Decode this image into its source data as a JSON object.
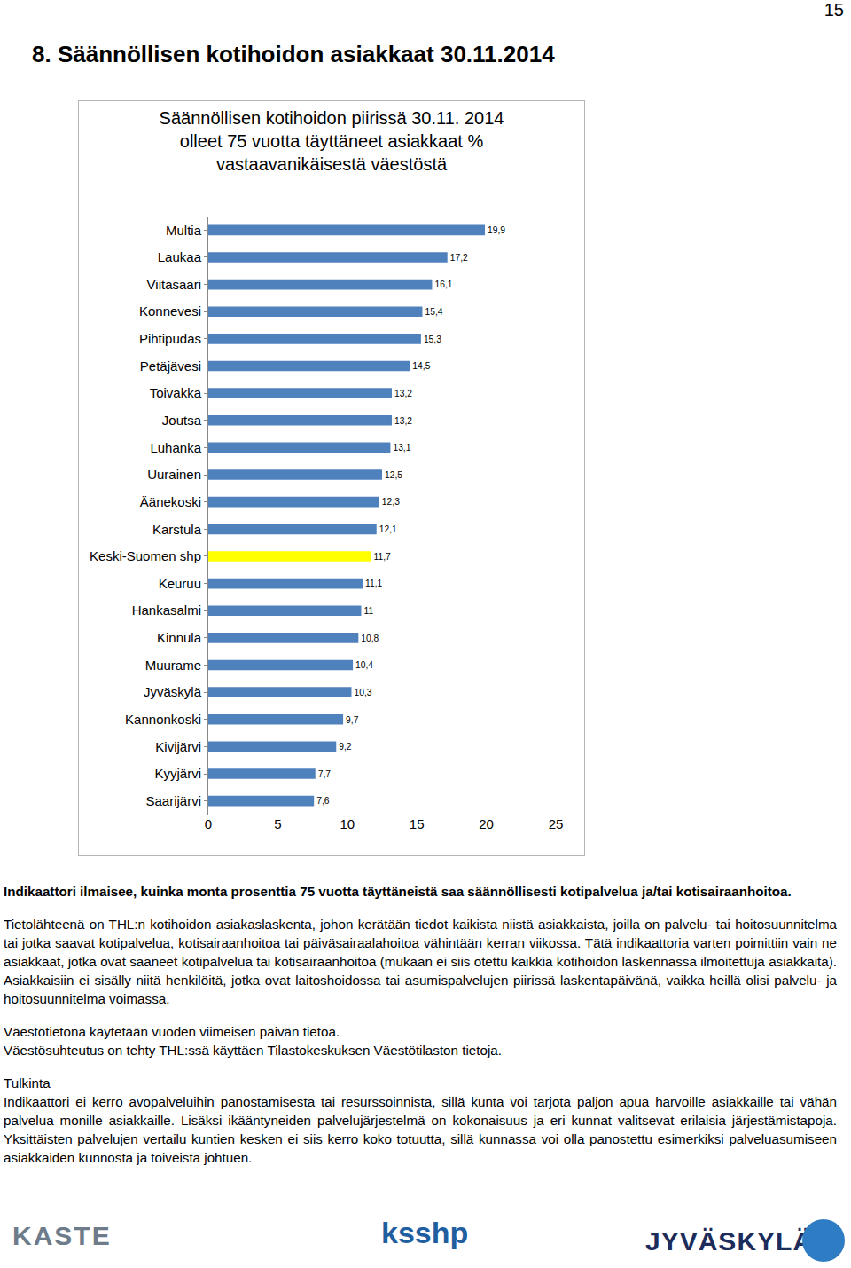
{
  "page_number": "15",
  "heading": "8. Säännöllisen kotihoidon asiakkaat 30.11.2014",
  "chart_data": {
    "type": "bar",
    "orientation": "horizontal",
    "title": "Säännöllisen kotihoidon piirissä 30.11. 2014\nolleet 75 vuotta täyttäneet asiakkaat %\nvastaavanikäisestä väestöstä",
    "categories": [
      "Multia",
      "Laukaa",
      "Viitasaari",
      "Konnevesi",
      "Pihtipudas",
      "Petäjävesi",
      "Toivakka",
      "Joutsa",
      "Luhanka",
      "Uurainen",
      "Äänekoski",
      "Karstula",
      "Keski-Suomen shp",
      "Keuruu",
      "Hankasalmi",
      "Kinnula",
      "Muurame",
      "Jyväskylä",
      "Kannonkoski",
      "Kivijärvi",
      "Kyyjärvi",
      "Saarijärvi"
    ],
    "values": [
      19.9,
      17.2,
      16.1,
      15.4,
      15.3,
      14.5,
      13.2,
      13.2,
      13.1,
      12.5,
      12.3,
      12.1,
      11.7,
      11.1,
      11,
      10.8,
      10.4,
      10.3,
      9.7,
      9.2,
      7.7,
      7.6
    ],
    "value_labels": [
      "19,9",
      "17,2",
      "16,1",
      "15,4",
      "15,3",
      "14,5",
      "13,2",
      "13,2",
      "13,1",
      "12,5",
      "12,3",
      "12,1",
      "11,7",
      "11,1",
      "11",
      "10,8",
      "10,4",
      "10,3",
      "9,7",
      "9,2",
      "7,7",
      "7,6"
    ],
    "colors": [
      "#4f81bd",
      "#4f81bd",
      "#4f81bd",
      "#4f81bd",
      "#4f81bd",
      "#4f81bd",
      "#4f81bd",
      "#4f81bd",
      "#4f81bd",
      "#4f81bd",
      "#4f81bd",
      "#4f81bd",
      "#ffff00",
      "#4f81bd",
      "#4f81bd",
      "#4f81bd",
      "#4f81bd",
      "#4f81bd",
      "#4f81bd",
      "#4f81bd",
      "#4f81bd",
      "#4f81bd"
    ],
    "data_labels": true,
    "grid": false,
    "xlim": [
      0,
      25
    ],
    "xticks": [
      0,
      5,
      10,
      15,
      20,
      25
    ]
  },
  "paragraphs": [
    {
      "bold": true,
      "lines": [
        "Indikaattori ilmaisee, kuinka monta prosenttia 75 vuotta täyttäneistä saa säännöllisesti kotipalvelua ja/tai kotisairaanhoitoa."
      ]
    },
    {
      "bold": false,
      "lines": [
        "Tietolähteenä on THL:n kotihoidon asiakaslaskenta, johon kerätään tiedot kaikista niistä asiakkaista, joilla on palvelu- tai hoitosuunnitelma tai jotka saavat kotipalvelua, kotisairaanhoitoa tai päiväsairaalahoitoa vähintään kerran viikossa. Tätä indikaattoria varten poimittiin vain ne asiakkaat, jotka ovat saaneet kotipalvelua tai kotisairaanhoitoa (mukaan ei siis otettu kaikkia kotihoidon laskennassa ilmoitettuja asiakkaita). Asiakkaisiin ei sisälly niitä henkilöitä, jotka ovat laitoshoidossa tai asumispalvelujen piirissä laskentapäivänä, vaikka heillä olisi palvelu- ja hoitosuunnitelma voimassa."
      ]
    },
    {
      "bold": false,
      "lines": [
        "Väestötietona käytetään vuoden viimeisen päivän tietoa.",
        "Väestösuhteutus on tehty THL:ssä käyttäen Tilastokeskuksen Väestötilaston tietoja."
      ]
    }
  ],
  "interpretation": {
    "heading": "Tulkinta",
    "text": "Indikaattori ei kerro avopalveluihin panostamisesta tai resurssoinnista, sillä kunta voi tarjota paljon apua harvoille asiakkaille tai vähän palvelua monille asiakkaille. Lisäksi ikääntyneiden palvelujärjestelmä on kokonaisuus ja eri kunnat valitsevat erilaisia järjestämistapoja. Yksittäisten palvelujen vertailu kuntien kesken ei siis kerro koko totuutta, sillä kunnassa voi olla panostettu esimerkiksi palveluasumiseen asiakkaiden kunnosta ja toiveista johtuen."
  },
  "logos": [
    "KASTE",
    "ksshp",
    "JYVÄSKYLÄ"
  ]
}
